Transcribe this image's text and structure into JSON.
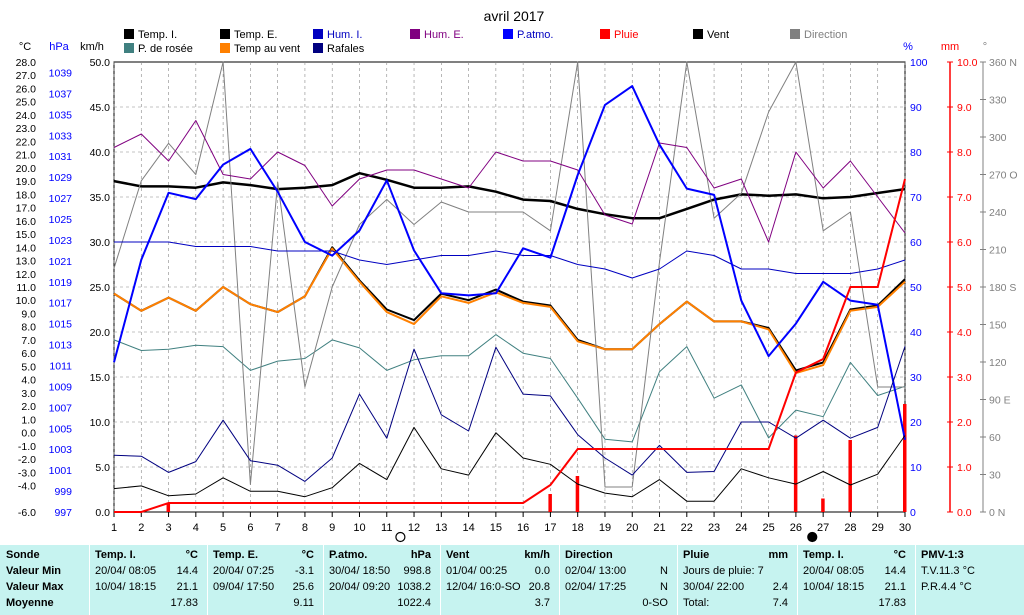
{
  "title": "avril 2017",
  "colors": {
    "temp_i": "#000000",
    "temp_e": "#000000",
    "hum_i": "#0000c0",
    "hum_e": "#800080",
    "pressure": "#0000ff",
    "rain": "#ff0000",
    "wind": "#000000",
    "direction": "#808080",
    "dew": "#408080",
    "windchill": "#ff8000",
    "gust": "#000080",
    "table_bg": "#c6f3f0"
  },
  "legend": [
    {
      "label": "Temp. I.",
      "color": "#000000"
    },
    {
      "label": "Temp. E.",
      "color": "#000000"
    },
    {
      "label": "Hum. I.",
      "color": "#0000c0"
    },
    {
      "label": "Hum. E.",
      "color": "#800080"
    },
    {
      "label": "P.atmo.",
      "color": "#0000ff"
    },
    {
      "label": "Pluie",
      "color": "#ff0000"
    },
    {
      "label": "Vent",
      "color": "#000000"
    },
    {
      "label": "Direction",
      "color": "#808080"
    },
    {
      "label": "P. de rosée",
      "color": "#408080"
    },
    {
      "label": "Temp au vent",
      "color": "#ff8000"
    },
    {
      "label": "Rafales",
      "color": "#000080"
    }
  ],
  "axis_units": {
    "temp": "°C",
    "press": "hPa",
    "wind": "km/h",
    "hum": "%",
    "rain": "mm",
    "dir": "°"
  },
  "chart_data": {
    "type": "line",
    "title": "avril 2017",
    "x": [
      1,
      2,
      3,
      4,
      5,
      6,
      7,
      8,
      9,
      10,
      11,
      12,
      13,
      14,
      15,
      16,
      17,
      18,
      19,
      20,
      21,
      22,
      23,
      24,
      25,
      26,
      27,
      28,
      29,
      30
    ],
    "xlim": [
      1,
      30
    ],
    "axes": {
      "temp": {
        "range": [
          -6,
          28
        ],
        "ticks": [
          "28.0",
          "27.0",
          "26.0",
          "25.0",
          "24.0",
          "23.0",
          "22.0",
          "21.0",
          "20.0",
          "19.0",
          "18.0",
          "17.0",
          "16.0",
          "15.0",
          "14.0",
          "13.0",
          "12.0",
          "11.0",
          "10.0",
          "9.0",
          "8.0",
          "7.0",
          "6.0",
          "5.0",
          "4.0",
          "3.0",
          "2.0",
          "1.0",
          "0.0",
          "-1.0",
          "-2.0",
          "-3.0",
          "-4.0",
          "-6.0"
        ]
      },
      "press": {
        "range": [
          997,
          1040
        ],
        "ticks": [
          "1039",
          "1037",
          "1035",
          "1033",
          "1031",
          "1029",
          "1027",
          "1025",
          "1023",
          "1021",
          "1019",
          "1017",
          "1015",
          "1013",
          "1011",
          "1009",
          "1007",
          "1005",
          "1003",
          "1001",
          "999",
          "997"
        ]
      },
      "wind": {
        "range": [
          0,
          50
        ],
        "ticks": [
          "50.0",
          "45.0",
          "40.0",
          "35.0",
          "30.0",
          "25.0",
          "20.0",
          "15.0",
          "10.0",
          "5.0",
          "0.0"
        ]
      },
      "hum": {
        "range": [
          0,
          100
        ],
        "ticks": [
          "100",
          "90",
          "80",
          "70",
          "60",
          "50",
          "40",
          "30",
          "20",
          "10",
          "0"
        ]
      },
      "rain": {
        "range": [
          0,
          10
        ],
        "ticks": [
          "10.0",
          "9.0",
          "8.0",
          "7.0",
          "6.0",
          "5.0",
          "4.0",
          "3.0",
          "2.0",
          "1.0",
          "0.0"
        ]
      },
      "dir": {
        "range": [
          0,
          360
        ],
        "ticks": [
          "360 N",
          "330",
          "300",
          "270 O",
          "240",
          "210",
          "180 S",
          "150",
          "120",
          "90 E",
          "60",
          "30",
          "0 N"
        ]
      }
    },
    "series": [
      {
        "name": "Temp. I.",
        "axis": "temp",
        "color": "#000000",
        "width": 2.5,
        "values": [
          19.0,
          18.6,
          18.6,
          18.5,
          18.9,
          18.7,
          18.4,
          18.5,
          18.7,
          19.6,
          19.1,
          18.5,
          18.5,
          18.6,
          18.2,
          17.6,
          17.5,
          16.9,
          16.5,
          16.2,
          16.2,
          16.9,
          17.6,
          18.0,
          17.9,
          18.0,
          17.7,
          17.8,
          18.1,
          18.4
        ]
      },
      {
        "name": "Temp. E.",
        "axis": "temp",
        "color": "#000000",
        "width": 2,
        "values": [
          10.5,
          9.2,
          10.2,
          9.2,
          11.0,
          9.7,
          9.1,
          10.3,
          14.0,
          11.5,
          9.3,
          8.5,
          10.5,
          10.0,
          10.8,
          9.9,
          9.6,
          7.0,
          6.3,
          6.3,
          8.2,
          9.9,
          8.4,
          8.4,
          7.9,
          4.7,
          5.3,
          9.3,
          9.6,
          11.6
        ]
      },
      {
        "name": "Temp au vent",
        "axis": "temp",
        "color": "#ff8000",
        "width": 2,
        "values": [
          10.5,
          9.2,
          10.2,
          9.2,
          11.0,
          9.7,
          9.1,
          10.3,
          13.9,
          11.4,
          9.1,
          8.2,
          10.3,
          9.8,
          10.6,
          9.8,
          9.5,
          6.9,
          6.3,
          6.3,
          8.2,
          9.9,
          8.4,
          8.4,
          7.8,
          4.5,
          5.1,
          9.2,
          9.5,
          11.4
        ]
      },
      {
        "name": "P. de rosée",
        "axis": "temp",
        "color": "#408080",
        "width": 1,
        "values": [
          7.0,
          6.2,
          6.3,
          6.6,
          6.5,
          4.7,
          5.4,
          5.6,
          7.0,
          6.4,
          4.7,
          5.5,
          5.8,
          5.8,
          7.4,
          6.0,
          5.6,
          2.6,
          -0.5,
          -0.7,
          4.6,
          6.5,
          2.6,
          3.6,
          -0.4,
          1.7,
          1.2,
          5.3,
          2.8,
          3.5
        ]
      },
      {
        "name": "Direction",
        "axis": "dir",
        "color": "#808080",
        "width": 1,
        "values": [
          195,
          265,
          295,
          270,
          360,
          22,
          264,
          100,
          180,
          230,
          250,
          230,
          248,
          240,
          240,
          240,
          225,
          360,
          20,
          20,
          200,
          360,
          235,
          255,
          320,
          360,
          225,
          240,
          100,
          100
        ]
      },
      {
        "name": "Hum. E.",
        "axis": "hum",
        "color": "#800080",
        "width": 1,
        "values": [
          81,
          84,
          78,
          87,
          75,
          74,
          80,
          77,
          68,
          74,
          76,
          76,
          74,
          72,
          80,
          78,
          78,
          76,
          66,
          64,
          82,
          81,
          72,
          74,
          60,
          80,
          72,
          78,
          70,
          62
        ]
      },
      {
        "name": "Hum. I.",
        "axis": "hum",
        "color": "#0000c0",
        "width": 1,
        "values": [
          60,
          60,
          60,
          59,
          59,
          59,
          58,
          58,
          58,
          56,
          55,
          56,
          57,
          57,
          58,
          57,
          57,
          55,
          54,
          52,
          54,
          58,
          57,
          54,
          54,
          53,
          53,
          53,
          54,
          56
        ]
      },
      {
        "name": "P.atmo.",
        "axis": "press",
        "color": "#0000ff",
        "width": 2,
        "values": [
          1011.3,
          1021.1,
          1027.5,
          1026.9,
          1030.2,
          1031.7,
          1027.6,
          1022.8,
          1021.5,
          1023.9,
          1028.7,
          1022.0,
          1017.9,
          1017.7,
          1017.9,
          1022.2,
          1021.3,
          1029.2,
          1035.9,
          1037.7,
          1032.1,
          1027.9,
          1027.3,
          1017.2,
          1011.9,
          1015.0,
          1019.0,
          1017.2,
          1016.8,
          1003.9
        ]
      },
      {
        "name": "Rafales",
        "axis": "wind",
        "color": "#000080",
        "width": 1,
        "values": [
          6.3,
          6.2,
          4.4,
          5.6,
          10.2,
          5.7,
          5.2,
          3.4,
          6.0,
          13.1,
          8.2,
          18.1,
          10.8,
          9.0,
          18.3,
          13.1,
          12.9,
          8.6,
          6.0,
          4.1,
          7.4,
          4.4,
          4.5,
          10.0,
          10.0,
          8.2,
          10.2,
          8.2,
          9.4,
          18.4
        ]
      },
      {
        "name": "Vent",
        "axis": "wind",
        "color": "#000000",
        "width": 1,
        "values": [
          2.6,
          2.9,
          1.8,
          2.0,
          3.8,
          2.3,
          2.3,
          1.7,
          2.7,
          5.4,
          3.6,
          9.4,
          4.8,
          4.1,
          8.8,
          6.0,
          5.3,
          3.1,
          2.1,
          1.7,
          3.6,
          1.2,
          1.2,
          4.8,
          3.8,
          3.1,
          4.5,
          3.0,
          4.2,
          8.5
        ]
      },
      {
        "name": "Pluie",
        "axis": "rain",
        "color": "#ff0000",
        "width": 2,
        "values": [
          0,
          0,
          0.2,
          0.2,
          0.2,
          0.2,
          0.2,
          0.2,
          0.2,
          0.2,
          0.2,
          0.2,
          0.2,
          0.2,
          0.2,
          0.2,
          0.6,
          1.4,
          1.4,
          1.4,
          1.4,
          1.4,
          1.4,
          1.4,
          1.4,
          3.1,
          3.4,
          5.0,
          5.0,
          7.4
        ]
      }
    ],
    "rain_daily": [
      0,
      0,
      0.2,
      0,
      0,
      0,
      0,
      0,
      0,
      0,
      0,
      0,
      0,
      0,
      0,
      0,
      0.4,
      0.8,
      0,
      0,
      0,
      0,
      0,
      0,
      0,
      1.7,
      0.3,
      1.6,
      0,
      2.4
    ],
    "moon_phases": [
      {
        "x": 11.5,
        "phase": "full"
      },
      {
        "x": 26.6,
        "phase": "new"
      }
    ],
    "grid": true
  },
  "table": [
    {
      "header": "Sonde",
      "rows": [
        "Valeur Min",
        "Valeur Max",
        "Moyenne"
      ]
    },
    {
      "header": "Temp. I.",
      "unit": "°C",
      "rows": [
        [
          "20/04/ 08:05",
          "14.4"
        ],
        [
          "10/04/ 18:15",
          "21.1"
        ],
        [
          "",
          "17.83"
        ]
      ]
    },
    {
      "header": "Temp. E.",
      "unit": "°C",
      "rows": [
        [
          "20/04/ 07:25",
          "-3.1"
        ],
        [
          "09/04/ 17:50",
          "25.6"
        ],
        [
          "",
          "9.11"
        ]
      ]
    },
    {
      "header": "P.atmo.",
      "unit": "hPa",
      "rows": [
        [
          "30/04/ 18:50",
          "998.8"
        ],
        [
          "20/04/ 09:20",
          "1038.2"
        ],
        [
          "",
          "1022.4"
        ]
      ]
    },
    {
      "header": "Vent",
      "unit": "km/h",
      "rows": [
        [
          "01/04/ 00:25",
          "0.0"
        ],
        [
          "12/04/ 16:0-SO",
          "20.8"
        ],
        [
          "",
          "3.7"
        ]
      ]
    },
    {
      "header": "Direction",
      "unit": "",
      "rows": [
        [
          "02/04/ 13:00",
          "N"
        ],
        [
          "02/04/ 17:25",
          "N"
        ],
        [
          "",
          "0-SO"
        ]
      ]
    },
    {
      "header": "Pluie",
      "unit": "mm",
      "rows": [
        [
          "Jours de pluie: 7",
          ""
        ],
        [
          "30/04/ 22:00",
          "2.4"
        ],
        [
          "Total:",
          "7.4"
        ]
      ]
    },
    {
      "header": "Temp. I.",
      "unit": "°C",
      "rows": [
        [
          "20/04/ 08:05",
          "14.4"
        ],
        [
          "10/04/ 18:15",
          "21.1"
        ],
        [
          "",
          "17.83"
        ]
      ]
    },
    {
      "header": "PMV-1:3",
      "unit": "",
      "rows": [
        [
          "T.V.11.3 °C",
          ""
        ],
        [
          "P.R.4.4 °C",
          ""
        ],
        [
          "",
          ""
        ]
      ]
    }
  ]
}
